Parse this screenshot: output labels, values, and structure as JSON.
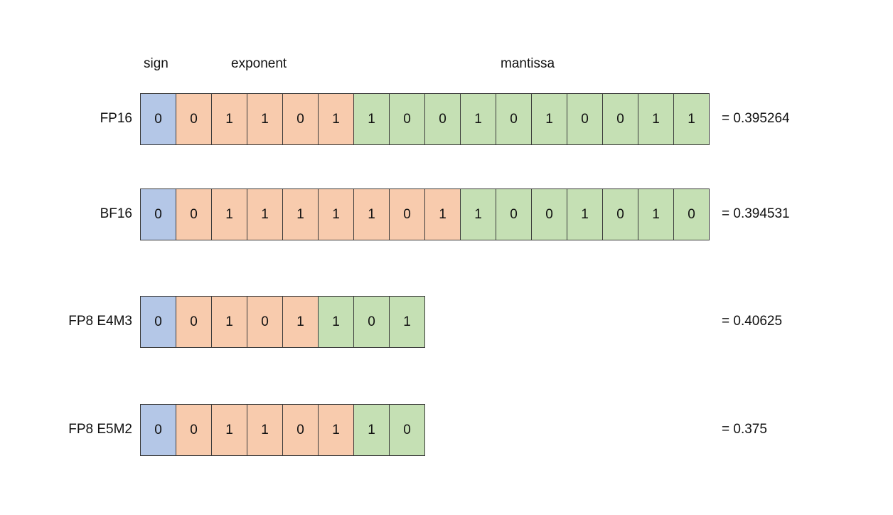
{
  "headers": {
    "sign": "sign",
    "exponent": "exponent",
    "mantissa": "mantissa"
  },
  "colors": {
    "sign": "#b4c7e7",
    "exponent": "#f8cbad",
    "mantissa": "#c5e0b4"
  },
  "rows": [
    {
      "label": "FP16",
      "bits": [
        "0",
        "0",
        "1",
        "1",
        "0",
        "1",
        "1",
        "0",
        "0",
        "1",
        "0",
        "1",
        "0",
        "0",
        "1",
        "1"
      ],
      "sign_bits": 1,
      "exponent_bits": 5,
      "mantissa_bits": 10,
      "result": "= 0.395264"
    },
    {
      "label": "BF16",
      "bits": [
        "0",
        "0",
        "1",
        "1",
        "1",
        "1",
        "1",
        "0",
        "1",
        "1",
        "0",
        "0",
        "1",
        "0",
        "1",
        "0"
      ],
      "sign_bits": 1,
      "exponent_bits": 8,
      "mantissa_bits": 7,
      "result": "= 0.394531"
    },
    {
      "label": "FP8 E4M3",
      "bits": [
        "0",
        "0",
        "1",
        "0",
        "1",
        "1",
        "0",
        "1"
      ],
      "sign_bits": 1,
      "exponent_bits": 4,
      "mantissa_bits": 3,
      "result": "= 0.40625"
    },
    {
      "label": "FP8 E5M2",
      "bits": [
        "0",
        "0",
        "1",
        "1",
        "0",
        "1",
        "1",
        "0"
      ],
      "sign_bits": 1,
      "exponent_bits": 5,
      "mantissa_bits": 2,
      "result": "= 0.375"
    }
  ]
}
